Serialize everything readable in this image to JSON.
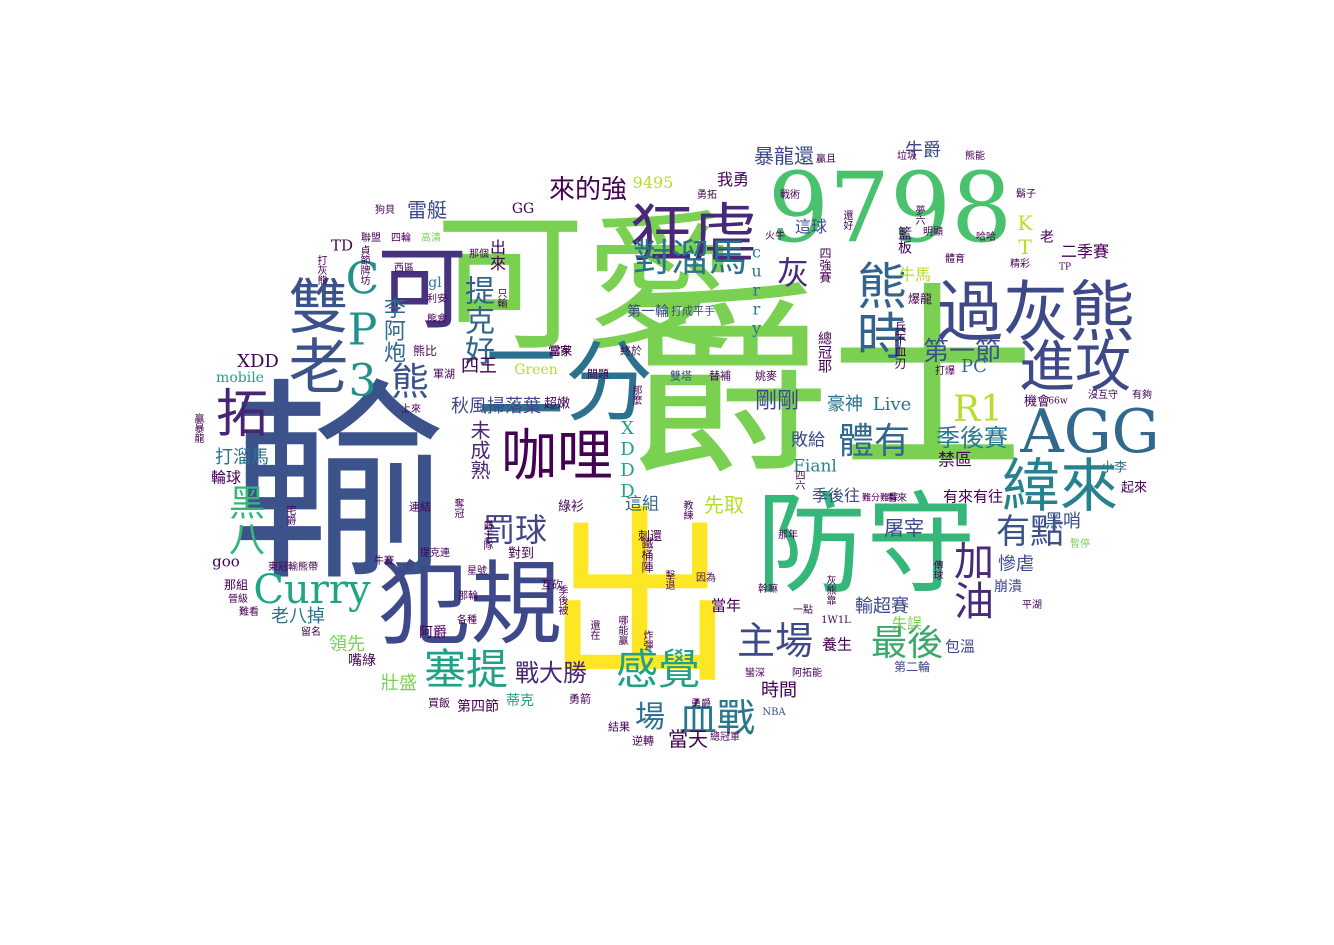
{
  "colors": {
    "c0": "#440154",
    "c1": "#46327e",
    "c2": "#365c8d",
    "c3": "#277f8e",
    "c4": "#1fa187",
    "c5": "#4ac16d",
    "c6": "#a0da39",
    "c7": "#fde725"
  },
  "words": [
    {
      "text": "爵士",
      "weight": 1.0,
      "color": "#7ad151"
    },
    {
      "text": "輸",
      "weight": 0.95,
      "color": "#3b528b"
    },
    {
      "text": "可愛",
      "weight": 0.92,
      "color": "#7ad151"
    },
    {
      "text": "出",
      "weight": 0.9,
      "color": "#fde725"
    },
    {
      "text": "防守",
      "weight": 0.8,
      "color": "#35b779"
    },
    {
      "text": "9798",
      "weight": 0.72,
      "color": "#4ac16d"
    },
    {
      "text": "犯規",
      "weight": 0.72,
      "color": "#3e4989"
    },
    {
      "text": "二分",
      "weight": 0.7,
      "color": "#2c728e"
    },
    {
      "text": "雙老",
      "weight": 0.62,
      "color": "#3b528b"
    },
    {
      "text": "可",
      "weight": 0.6,
      "color": "#46327e"
    },
    {
      "text": "狂虐",
      "weight": 0.52,
      "color": "#482878"
    },
    {
      "text": "過灰熊",
      "weight": 0.52,
      "color": "#3e4989"
    },
    {
      "text": "AGG",
      "weight": 0.5,
      "color": "#31688e"
    },
    {
      "text": "熊時",
      "weight": 0.5,
      "color": "#33638d"
    },
    {
      "text": "進攻",
      "weight": 0.48,
      "color": "#3e4989"
    },
    {
      "text": "緯來",
      "weight": 0.48,
      "color": "#26828e"
    },
    {
      "text": "咖哩",
      "weight": 0.46,
      "color": "#440154"
    },
    {
      "text": "拓",
      "weight": 0.44,
      "color": "#482475"
    },
    {
      "text": "CP3",
      "weight": 0.44,
      "color": "#21918c"
    },
    {
      "text": "Curry",
      "weight": 0.4,
      "color": "#20a486"
    },
    {
      "text": "塞提",
      "weight": 0.38,
      "color": "#1fa187"
    },
    {
      "text": "感覺",
      "weight": 0.38,
      "color": "#1fa187"
    },
    {
      "text": "對溜馬",
      "weight": 0.36,
      "color": "#2c728e"
    },
    {
      "text": "血戰",
      "weight": 0.36,
      "color": "#2a788e"
    },
    {
      "text": "主場",
      "weight": 0.36,
      "color": "#3e4989"
    },
    {
      "text": "加油",
      "weight": 0.36,
      "color": "#482878"
    },
    {
      "text": "最後",
      "weight": 0.34,
      "color": "#38a96b"
    },
    {
      "text": "體有",
      "weight": 0.34,
      "color": "#31688e"
    },
    {
      "text": "R1",
      "weight": 0.34,
      "color": "#b5de2b"
    },
    {
      "text": "黑八",
      "weight": 0.34,
      "color": "#35b779"
    },
    {
      "text": "熊",
      "weight": 0.33,
      "color": "#3b528b"
    },
    {
      "text": "有點",
      "weight": 0.32,
      "color": "#3b528b"
    },
    {
      "text": "灰",
      "weight": 0.32,
      "color": "#472c7a"
    },
    {
      "text": "罰球",
      "weight": 0.3,
      "color": "#414487"
    },
    {
      "text": "提克好",
      "weight": 0.3,
      "color": "#33638d"
    },
    {
      "text": "場",
      "weight": 0.3,
      "color": "#2c728e"
    },
    {
      "text": "季後賽",
      "weight": 0.28,
      "color": "#2a788e"
    },
    {
      "text": "來的強",
      "weight": 0.26,
      "color": "#440154"
    },
    {
      "text": "第一節",
      "weight": 0.26,
      "color": "#3b528b"
    },
    {
      "text": "戰大勝",
      "weight": 0.24,
      "color": "#482475"
    },
    {
      "text": "李阿炮",
      "weight": 0.24,
      "color": "#31688e"
    },
    {
      "text": "當天",
      "weight": 0.22,
      "color": "#440154"
    },
    {
      "text": "秋風掃落葉",
      "weight": 0.22,
      "color": "#3e4989"
    },
    {
      "text": "剛剛",
      "weight": 0.22,
      "color": "#3e4989"
    },
    {
      "text": "豪神",
      "weight": 0.22,
      "color": "#2c728e"
    },
    {
      "text": "Live",
      "weight": 0.22,
      "color": "#2c728e"
    },
    {
      "text": "先取",
      "weight": 0.22,
      "color": "#b5de2b"
    },
    {
      "text": "屠宰",
      "weight": 0.22,
      "color": "#3e4989"
    },
    {
      "text": "KT",
      "weight": 0.22,
      "color": "#b5de2b"
    },
    {
      "text": "暴龍還",
      "weight": 0.21,
      "color": "#3e4989"
    },
    {
      "text": "牛爵",
      "weight": 0.21,
      "color": "#3e4989"
    },
    {
      "text": "PC",
      "weight": 0.21,
      "color": "#31688e"
    },
    {
      "text": "四王",
      "weight": 0.2,
      "color": "#440154"
    },
    {
      "text": "未成熟",
      "weight": 0.2,
      "color": "#482878"
    },
    {
      "text": "XDD",
      "weight": 0.2,
      "color": "#440154"
    },
    {
      "text": "XDDD",
      "weight": 0.2,
      "color": "#1fa187"
    },
    {
      "text": "curry",
      "weight": 0.18,
      "color": "#2a788e"
    },
    {
      "text": "雷艇",
      "weight": 0.2,
      "color": "#3e4989"
    },
    {
      "text": "打溜馬",
      "weight": 0.2,
      "color": "#2c728e"
    },
    {
      "text": "老八掉",
      "weight": 0.2,
      "color": "#2c728e"
    },
    {
      "text": "領先",
      "weight": 0.2,
      "color": "#7ad151"
    },
    {
      "text": "壯盛",
      "weight": 0.2,
      "color": "#7ad151"
    },
    {
      "text": "時間",
      "weight": 0.2,
      "color": "#440154"
    },
    {
      "text": "輸超賽",
      "weight": 0.2,
      "color": "#3e4989"
    },
    {
      "text": "黑哨",
      "weight": 0.2,
      "color": "#3b528b"
    },
    {
      "text": "慘虐",
      "weight": 0.2,
      "color": "#3e4989"
    },
    {
      "text": "敗給",
      "weight": 0.19,
      "color": "#3e4989"
    },
    {
      "text": "禁區",
      "weight": 0.19,
      "color": "#440154"
    },
    {
      "text": "Fianl",
      "weight": 0.19,
      "color": "#26828e"
    },
    {
      "text": "這組",
      "weight": 0.19,
      "color": "#31688e"
    },
    {
      "text": "這球",
      "weight": 0.19,
      "color": "#3e4989"
    },
    {
      "text": "我勇",
      "weight": 0.19,
      "color": "#440154"
    },
    {
      "text": "9495",
      "weight": 0.18,
      "color": "#b5de2b"
    },
    {
      "text": "牛馬",
      "weight": 0.18,
      "color": "#b5de2b"
    },
    {
      "text": "季後往",
      "weight": 0.18,
      "color": "#3e4989"
    },
    {
      "text": "有來有往",
      "weight": 0.18,
      "color": "#440154"
    },
    {
      "text": "養生",
      "weight": 0.18,
      "color": "#440154"
    },
    {
      "text": "當年",
      "weight": 0.18,
      "color": "#440154"
    },
    {
      "text": "包溫",
      "weight": 0.18,
      "color": "#3e4989"
    },
    {
      "text": "崩潰",
      "weight": 0.17,
      "color": "#3e4989"
    },
    {
      "text": "失誤",
      "weight": 0.17,
      "color": "#7ad151"
    },
    {
      "text": "第四節",
      "weight": 0.17,
      "color": "#440154"
    },
    {
      "text": "蒂克",
      "weight": 0.17,
      "color": "#1fa187"
    },
    {
      "text": "嘴綠",
      "weight": 0.17,
      "color": "#440154"
    },
    {
      "text": "阿爵",
      "weight": 0.16,
      "color": "#440154"
    },
    {
      "text": "goo",
      "weight": 0.17,
      "color": "#440154"
    },
    {
      "text": "輪球",
      "weight": 0.17,
      "color": "#440154"
    },
    {
      "text": "mobile",
      "weight": 0.15,
      "color": "#1fa187"
    },
    {
      "text": "gl",
      "weight": 0.16,
      "color": "#2a788e"
    },
    {
      "text": "TD",
      "weight": 0.16,
      "color": "#440154"
    },
    {
      "text": "GG",
      "weight": 0.15,
      "color": "#440154"
    },
    {
      "text": "Green",
      "weight": 0.15,
      "color": "#b5de2b"
    },
    {
      "text": "小李",
      "weight": 0.15,
      "color": "#2c728e"
    },
    {
      "text": "起來",
      "weight": 0.15,
      "color": "#440154"
    },
    {
      "text": "機會",
      "weight": 0.15,
      "color": "#440154"
    },
    {
      "text": "超嫩",
      "weight": 0.15,
      "color": "#440154"
    },
    {
      "text": "綠衫",
      "weight": 0.15,
      "color": "#440154"
    },
    {
      "text": "刺還",
      "weight": 0.13,
      "color": "#440154"
    },
    {
      "text": "對到",
      "weight": 0.15,
      "color": "#440154"
    },
    {
      "text": "互砍",
      "weight": 0.12,
      "color": "#440154"
    },
    {
      "text": "第一輪",
      "weight": 0.15,
      "color": "#3e4989"
    },
    {
      "text": "打成平手",
      "weight": 0.12,
      "color": "#3e4989"
    },
    {
      "text": "當家",
      "weight": 0.13,
      "color": "#440154"
    },
    {
      "text": "第二輪",
      "weight": 0.13,
      "color": "#3e4989"
    },
    {
      "text": "買飯",
      "weight": 0.12,
      "color": "#440154"
    },
    {
      "text": "勇箭",
      "weight": 0.12,
      "color": "#440154"
    },
    {
      "text": "結果",
      "weight": 0.12,
      "color": "#440154"
    },
    {
      "text": "逆轉",
      "weight": 0.12,
      "color": "#440154"
    },
    {
      "text": "總冠軍",
      "weight": 0.11,
      "color": "#440154"
    },
    {
      "text": "NBA",
      "weight": 0.11,
      "color": "#3e4989"
    },
    {
      "text": "阿拓能",
      "weight": 0.11,
      "color": "#440154"
    },
    {
      "text": "蠻深",
      "weight": 0.11,
      "color": "#440154"
    },
    {
      "text": "勇爵",
      "weight": 0.11,
      "color": "#440154"
    },
    {
      "text": "1W1L",
      "weight": 0.11,
      "color": "#440154"
    },
    {
      "text": "一點",
      "weight": 0.1,
      "color": "#440154"
    },
    {
      "text": "那年",
      "weight": 0.1,
      "color": "#440154"
    },
    {
      "text": "看來",
      "weight": 0.1,
      "color": "#440154"
    },
    {
      "text": "難分難解",
      "weight": 0.1,
      "color": "#440154"
    },
    {
      "text": "平湖",
      "weight": 0.1,
      "color": "#440154"
    },
    {
      "text": "暫停",
      "weight": 0.1,
      "color": "#7ad151"
    },
    {
      "text": "沒互守",
      "weight": 0.1,
      "color": "#440154"
    },
    {
      "text": "有夠",
      "weight": 0.1,
      "color": "#440154"
    },
    {
      "text": "熊比",
      "weight": 0.12,
      "color": "#440154"
    },
    {
      "text": "軍湖",
      "weight": 0.11,
      "color": "#440154"
    },
    {
      "text": "當茱",
      "weight": 0.11,
      "color": "#440154"
    },
    {
      "text": "問題",
      "weight": 0.11,
      "color": "#440154"
    },
    {
      "text": "終於",
      "weight": 0.11,
      "color": "#440154"
    },
    {
      "text": "雙塔",
      "weight": 0.11,
      "color": "#3e4989"
    },
    {
      "text": "替補",
      "weight": 0.11,
      "color": "#440154"
    },
    {
      "text": "姚麥",
      "weight": 0.11,
      "color": "#440154"
    },
    {
      "text": "連結",
      "weight": 0.11,
      "color": "#440154"
    },
    {
      "text": "星號",
      "weight": 0.1,
      "color": "#440154"
    },
    {
      "text": "那輪",
      "weight": 0.1,
      "color": "#440154"
    },
    {
      "text": "各種",
      "weight": 0.1,
      "color": "#440154"
    },
    {
      "text": "晉級",
      "weight": 0.1,
      "color": "#440154"
    },
    {
      "text": "難看",
      "weight": 0.1,
      "color": "#440154"
    },
    {
      "text": "留名",
      "weight": 0.1,
      "color": "#440154"
    },
    {
      "text": "那組",
      "weight": 0.12,
      "color": "#440154"
    },
    {
      "text": "因為",
      "weight": 0.1,
      "color": "#440154"
    },
    {
      "text": "幹嘛",
      "weight": 0.1,
      "color": "#440154"
    },
    {
      "text": "狗貝",
      "weight": 0.1,
      "color": "#440154"
    },
    {
      "text": "聯盟",
      "weight": 0.1,
      "color": "#440154"
    },
    {
      "text": "四輪",
      "weight": 0.1,
      "color": "#440154"
    },
    {
      "text": "高清",
      "weight": 0.1,
      "color": "#7ad151"
    },
    {
      "text": "那個",
      "weight": 0.1,
      "color": "#440154"
    },
    {
      "text": "西區",
      "weight": 0.1,
      "color": "#440154"
    },
    {
      "text": "利安",
      "weight": 0.1,
      "color": "#440154"
    },
    {
      "text": "熊會",
      "weight": 0.1,
      "color": "#440154"
    },
    {
      "text": "上來",
      "weight": 0.1,
      "color": "#440154"
    },
    {
      "text": "勇拓",
      "weight": 0.1,
      "color": "#440154"
    },
    {
      "text": "戰術",
      "weight": 0.1,
      "color": "#440154"
    },
    {
      "text": "火牛",
      "weight": 0.1,
      "color": "#440154"
    },
    {
      "text": "明顯",
      "weight": 0.1,
      "color": "#440154"
    },
    {
      "text": "哈哈",
      "weight": 0.1,
      "color": "#440154"
    },
    {
      "text": "精彩",
      "weight": 0.1,
      "color": "#440154"
    },
    {
      "text": "體育",
      "weight": 0.1,
      "color": "#440154"
    },
    {
      "text": "垃圾",
      "weight": 0.1,
      "color": "#440154"
    },
    {
      "text": "熊能",
      "weight": 0.1,
      "color": "#440154"
    },
    {
      "text": "鬍子",
      "weight": 0.1,
      "color": "#440154"
    },
    {
      "text": "贏且",
      "weight": 0.1,
      "color": "#440154"
    },
    {
      "text": "打爆",
      "weight": 0.1,
      "color": "#440154"
    },
    {
      "text": "受傷",
      "weight": 0.1,
      "color": "#7ad151"
    },
    {
      "text": "66w",
      "weight": 0.09,
      "color": "#440154"
    },
    {
      "text": "TP",
      "weight": 0.09,
      "color": "#440154"
    },
    {
      "text": "爆龍",
      "weight": 0.12,
      "color": "#440154"
    },
    {
      "text": "贏暴龍",
      "weight": 0.1,
      "color": "#440154"
    },
    {
      "text": "擊退",
      "weight": 0.1,
      "color": "#440154"
    },
    {
      "text": "奪冠",
      "weight": 0.1,
      "color": "#440154"
    },
    {
      "text": "牛賽",
      "weight": 0.1,
      "color": "#440154"
    },
    {
      "text": "總冠耶",
      "weight": 0.15,
      "color": "#440154"
    },
    {
      "text": "四強賽",
      "weight": 0.12,
      "color": "#440154"
    },
    {
      "text": "兵不血刃",
      "weight": 0.12,
      "color": "#440154"
    },
    {
      "text": "籃板",
      "weight": 0.14,
      "color": "#440154"
    },
    {
      "text": "二季賽",
      "weight": 0.16,
      "color": "#440154"
    },
    {
      "text": "出來",
      "weight": 0.16,
      "color": "#440154"
    },
    {
      "text": "提克連",
      "weight": 0.1,
      "color": "#440154"
    },
    {
      "text": "東冠輸熊帶",
      "weight": 0.1,
      "color": "#440154"
    },
    {
      "text": "鐵桶陣",
      "weight": 0.12,
      "color": "#440154"
    },
    {
      "text": "哪能贏",
      "weight": 0.1,
      "color": "#440154"
    },
    {
      "text": "炸彈",
      "weight": 0.1,
      "color": "#440154"
    },
    {
      "text": "還在",
      "weight": 0.1,
      "color": "#440154"
    },
    {
      "text": "季後被",
      "weight": 0.1,
      "color": "#440154"
    },
    {
      "text": "灰熊靠",
      "weight": 0.1,
      "color": "#440154"
    },
    {
      "text": "傳球",
      "weight": 0.1,
      "color": "#440154"
    },
    {
      "text": "貞節牌坊",
      "weight": 0.1,
      "color": "#440154"
    },
    {
      "text": "打灰熊",
      "weight": 0.1,
      "color": "#440154"
    },
    {
      "text": "教練",
      "weight": 0.1,
      "color": "#440154"
    },
    {
      "text": "爵士隊",
      "weight": 0.1,
      "color": "#440154"
    },
    {
      "text": "宅爵",
      "weight": 0.1,
      "color": "#440154"
    },
    {
      "text": "還好",
      "weight": 0.1,
      "color": "#440154"
    },
    {
      "text": "四六",
      "weight": 0.1,
      "color": "#440154"
    },
    {
      "text": "那麼",
      "weight": 0.1,
      "color": "#440154"
    },
    {
      "text": "只輸",
      "weight": 0.1,
      "color": "#440154"
    },
    {
      "text": "夢六",
      "weight": 0.1,
      "color": "#440154"
    },
    {
      "text": "老",
      "weight": 0.14,
      "color": "#440154"
    }
  ]
}
